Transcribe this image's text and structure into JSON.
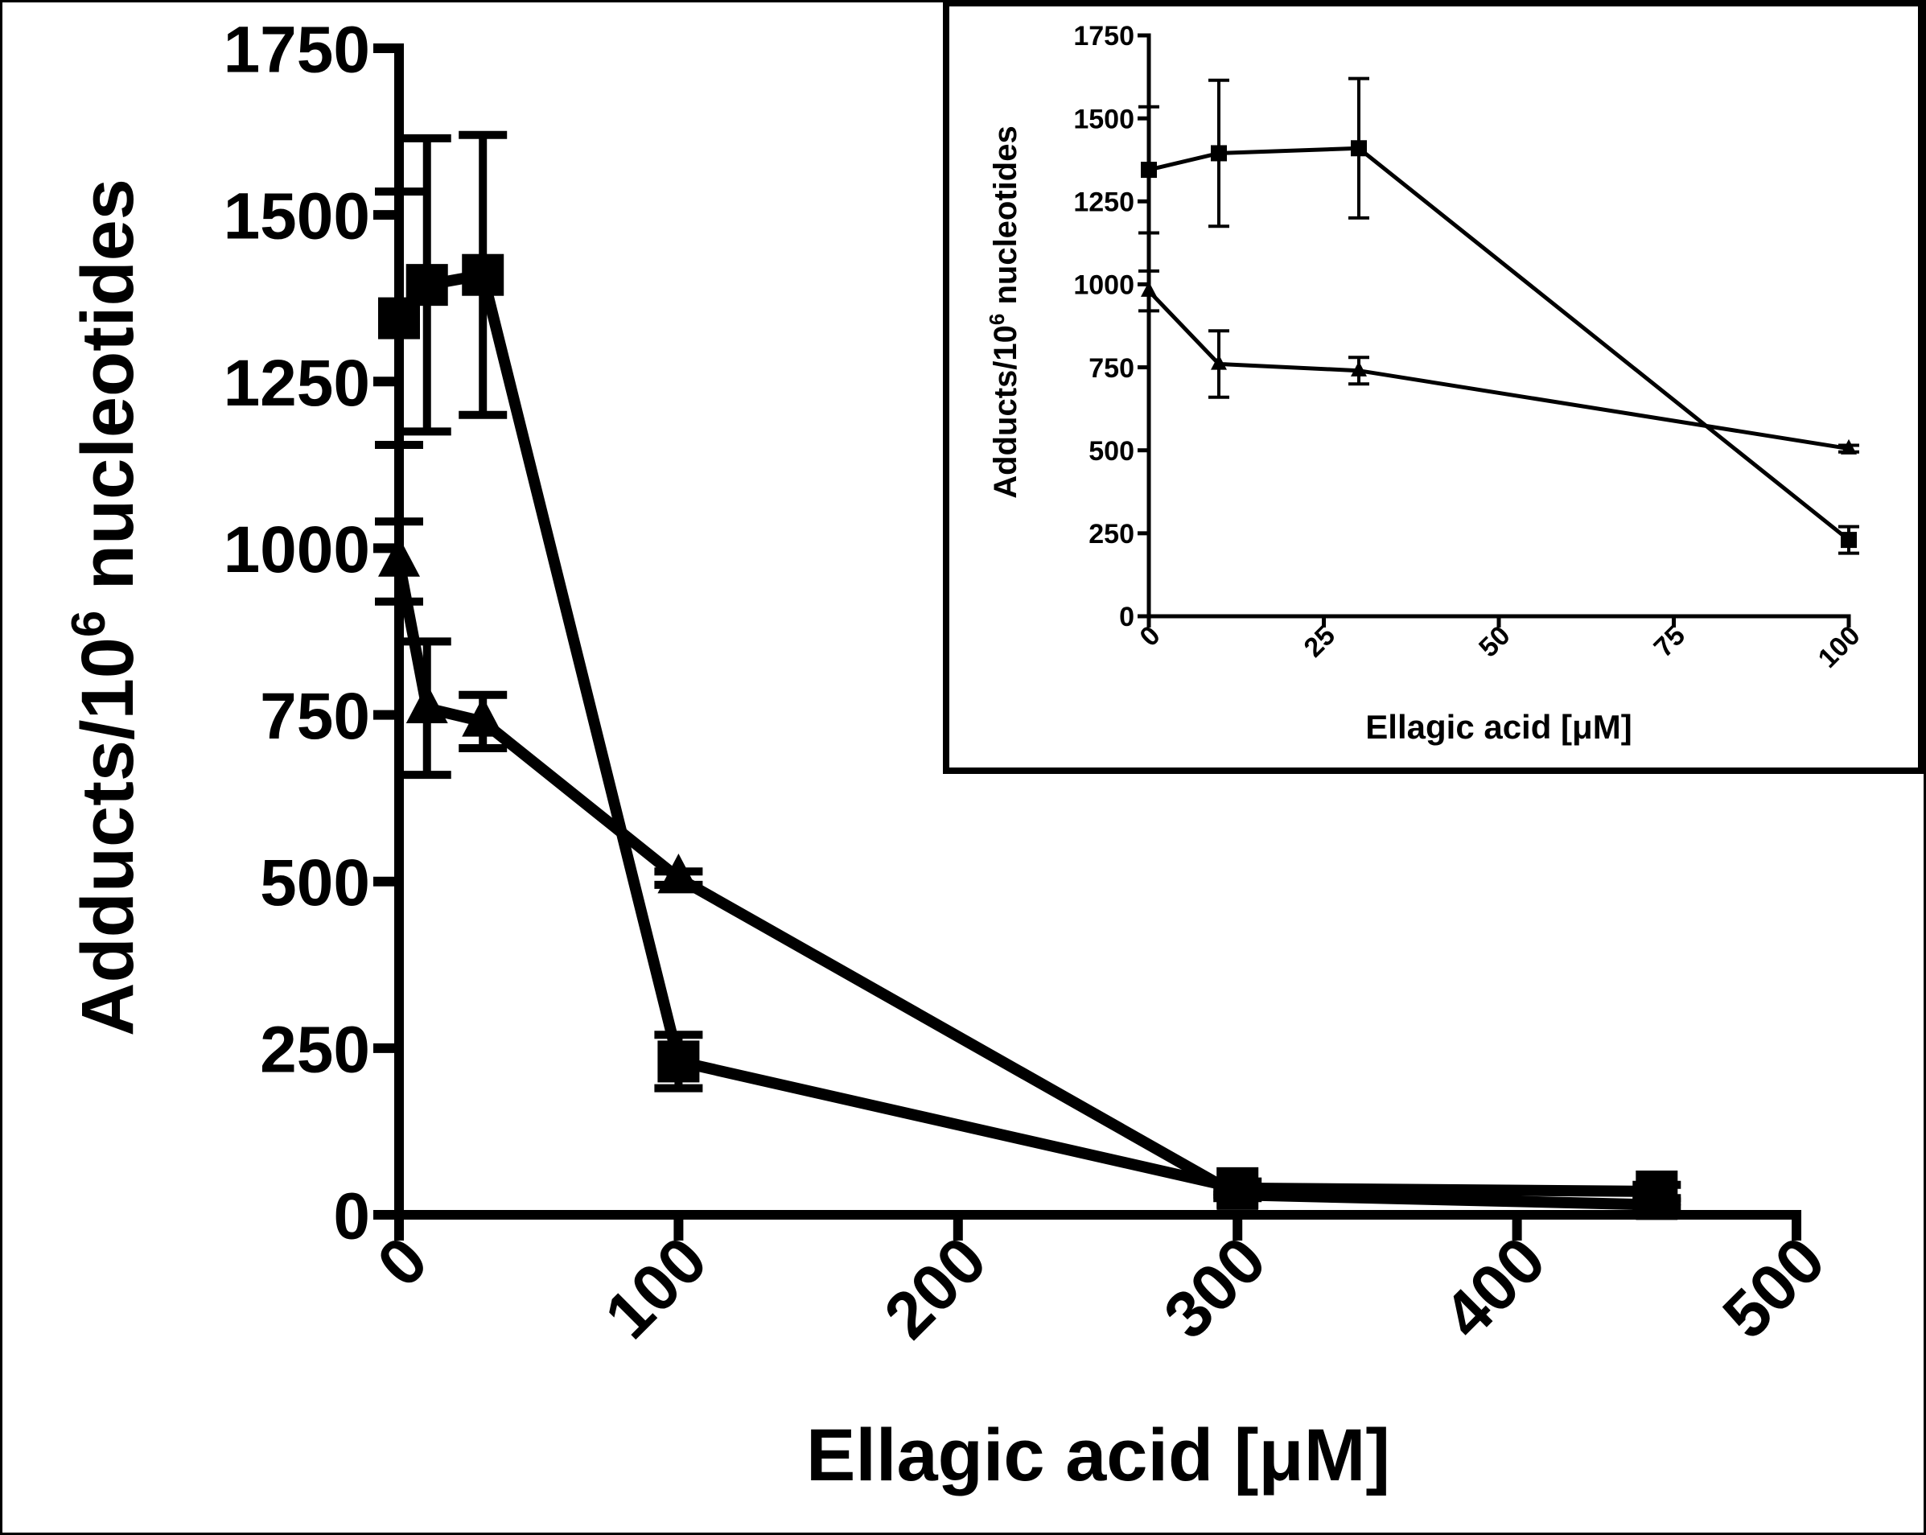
{
  "chart_data": [
    {
      "id": "main",
      "type": "line",
      "xlabel": "Ellagic acid [μM]",
      "ylabel_base": "Adducts/10",
      "ylabel_sup": "6",
      "ylabel_tail": " nucleotides",
      "xlim": [
        0,
        500
      ],
      "ylim": [
        0,
        1750
      ],
      "x_ticks": [
        0,
        100,
        200,
        300,
        400,
        500
      ],
      "y_ticks": [
        0,
        250,
        500,
        750,
        1000,
        1250,
        1500,
        1750
      ],
      "grid": false,
      "series": [
        {
          "marker": "square",
          "x": [
            0,
            10,
            30,
            100,
            300,
            450
          ],
          "values": [
            1345,
            1395,
            1410,
            230,
            40,
            35
          ],
          "errors": [
            190,
            220,
            210,
            40,
            10,
            10
          ]
        },
        {
          "marker": "triangle",
          "x": [
            0,
            10,
            30,
            100,
            300,
            450
          ],
          "values": [
            980,
            760,
            740,
            505,
            30,
            15
          ],
          "errors": [
            60,
            100,
            40,
            10,
            5,
            5
          ]
        }
      ]
    },
    {
      "id": "inset",
      "type": "line",
      "xlabel": "Ellagic acid [μM]",
      "ylabel_base": "Adducts/10",
      "ylabel_sup": "6",
      "ylabel_tail": " nucleotides",
      "xlim": [
        0,
        100
      ],
      "ylim": [
        0,
        1750
      ],
      "x_ticks": [
        0,
        25,
        50,
        75,
        100
      ],
      "y_ticks": [
        0,
        250,
        500,
        750,
        1000,
        1250,
        1500,
        1750
      ],
      "grid": false,
      "series": [
        {
          "marker": "square",
          "x": [
            0,
            10,
            30,
            100
          ],
          "values": [
            1345,
            1395,
            1410,
            230
          ],
          "errors": [
            190,
            220,
            210,
            40
          ]
        },
        {
          "marker": "triangle",
          "x": [
            0,
            10,
            30,
            100
          ],
          "values": [
            980,
            760,
            740,
            505
          ],
          "errors": [
            60,
            100,
            40,
            10
          ]
        }
      ]
    }
  ]
}
